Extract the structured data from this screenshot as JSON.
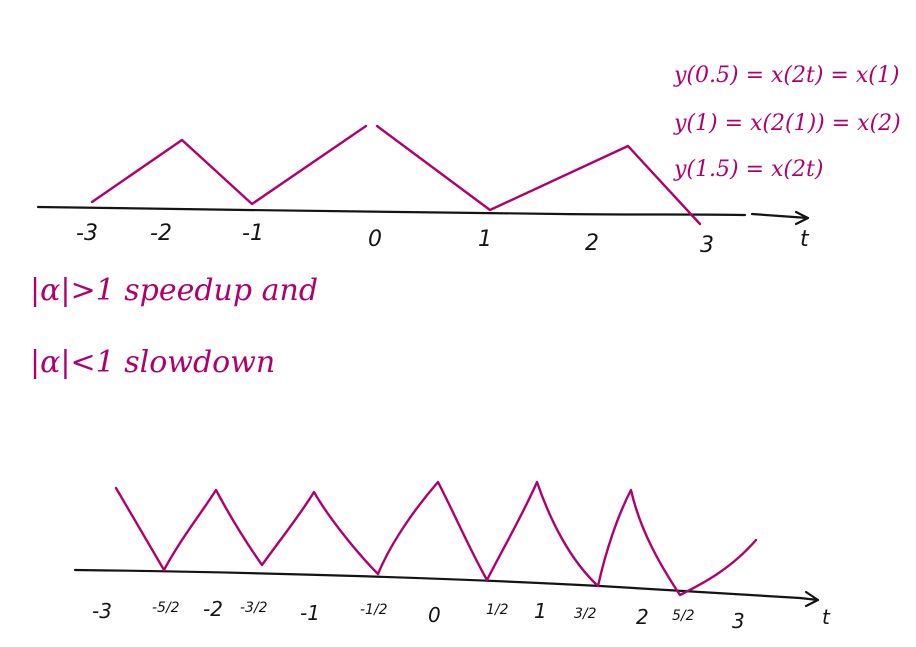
{
  "colors": {
    "ink": "#141414",
    "pen": "#b0006e"
  },
  "top_axis": {
    "ticks": [
      "-3",
      "-2",
      "-1",
      "0",
      "1",
      "2",
      "3"
    ],
    "axis_label": "t"
  },
  "equations": [
    "y(0.5) = x(2t) = x(1)",
    "y(1) = x(2(1)) = x(2)",
    "y(1.5) = x(2t)"
  ],
  "notes": [
    "|α|>1  speedup and",
    "|α|<1  slowdown"
  ],
  "bottom_axis": {
    "ticks": [
      "-3",
      "-5/2",
      "-2",
      "-3/2",
      "-1",
      "-1/2",
      "0",
      "1/2",
      "1",
      "3/2",
      "2",
      "5/2",
      "3"
    ],
    "axis_label": "t"
  }
}
